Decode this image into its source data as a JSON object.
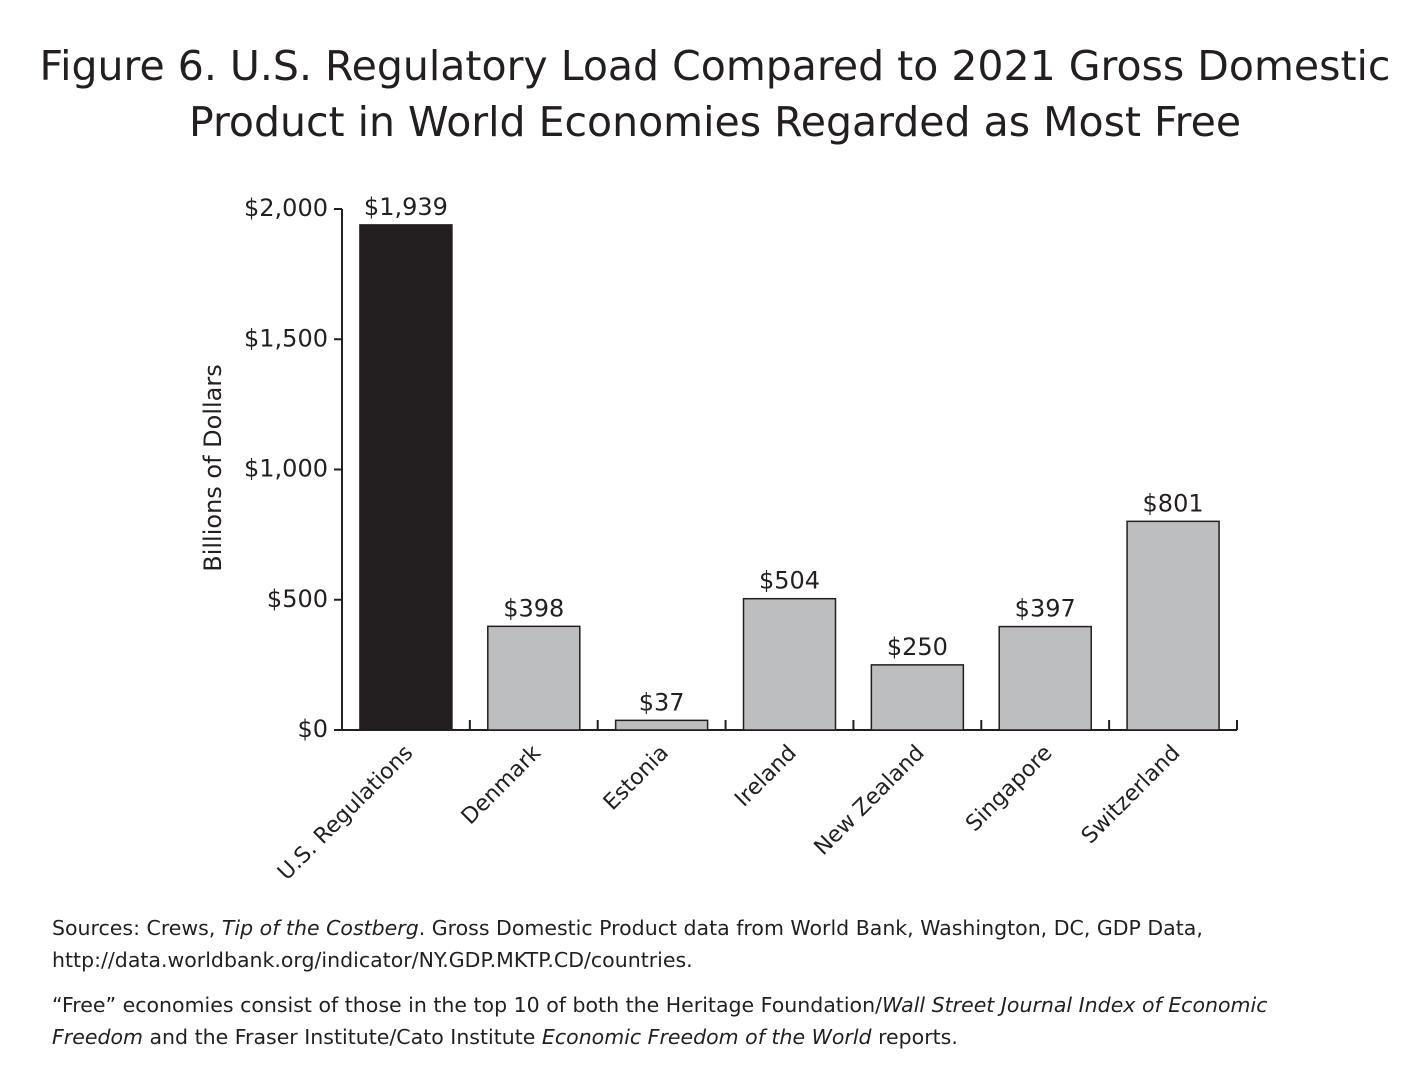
{
  "chart_data": {
    "type": "bar",
    "title": [
      "Figure 6. U.S. Regulatory Load Compared to 2021 Gross Domestic",
      "Product in World Economies Regarded as Most Free"
    ],
    "y_label": "Billions of Dollars",
    "categories": [
      "U.S. Regulations",
      "Denmark",
      "Estonia",
      "Ireland",
      "New Zealand",
      "Singapore",
      "Switzerland"
    ],
    "values": [
      1939,
      398,
      37,
      504,
      250,
      397,
      801
    ],
    "value_labels": [
      "$1,939",
      "$398",
      "$37",
      "$504",
      "$250",
      "$397",
      "$801"
    ],
    "colors": [
      "#231f20",
      "#bcbec0",
      "#bcbec0",
      "#bcbec0",
      "#bcbec0",
      "#bcbec0",
      "#bcbec0"
    ],
    "ylim": [
      0,
      2000
    ],
    "yticks": [
      {
        "value": 0,
        "label": "$0"
      },
      {
        "value": 500,
        "label": "$500"
      },
      {
        "value": 1000,
        "label": "$1,000"
      },
      {
        "value": 1500,
        "label": "$1,500"
      },
      {
        "value": 2000,
        "label": "$2,000"
      }
    ],
    "grid": false,
    "notes": [
      [
        {
          "text": "Sources: Crews, "
        },
        {
          "text": "Tip of the Costberg",
          "italic": true
        },
        {
          "text": ". Gross Domestic Product data from World Bank, Washington, DC, GDP Data, http://data.worldbank.org/indicator/NY.GDP.MKTP.CD/countries."
        }
      ],
      [
        {
          "text": "“Free” economies consist of those in the top 10 of both the Heritage Foundation/"
        },
        {
          "text": "Wall Street Journal Index of Economic Freedom",
          "italic": true
        },
        {
          "text": " and the Fraser Institute/Cato Institute "
        },
        {
          "text": "Economic Freedom of the World",
          "italic": true
        },
        {
          "text": " reports."
        }
      ]
    ]
  }
}
